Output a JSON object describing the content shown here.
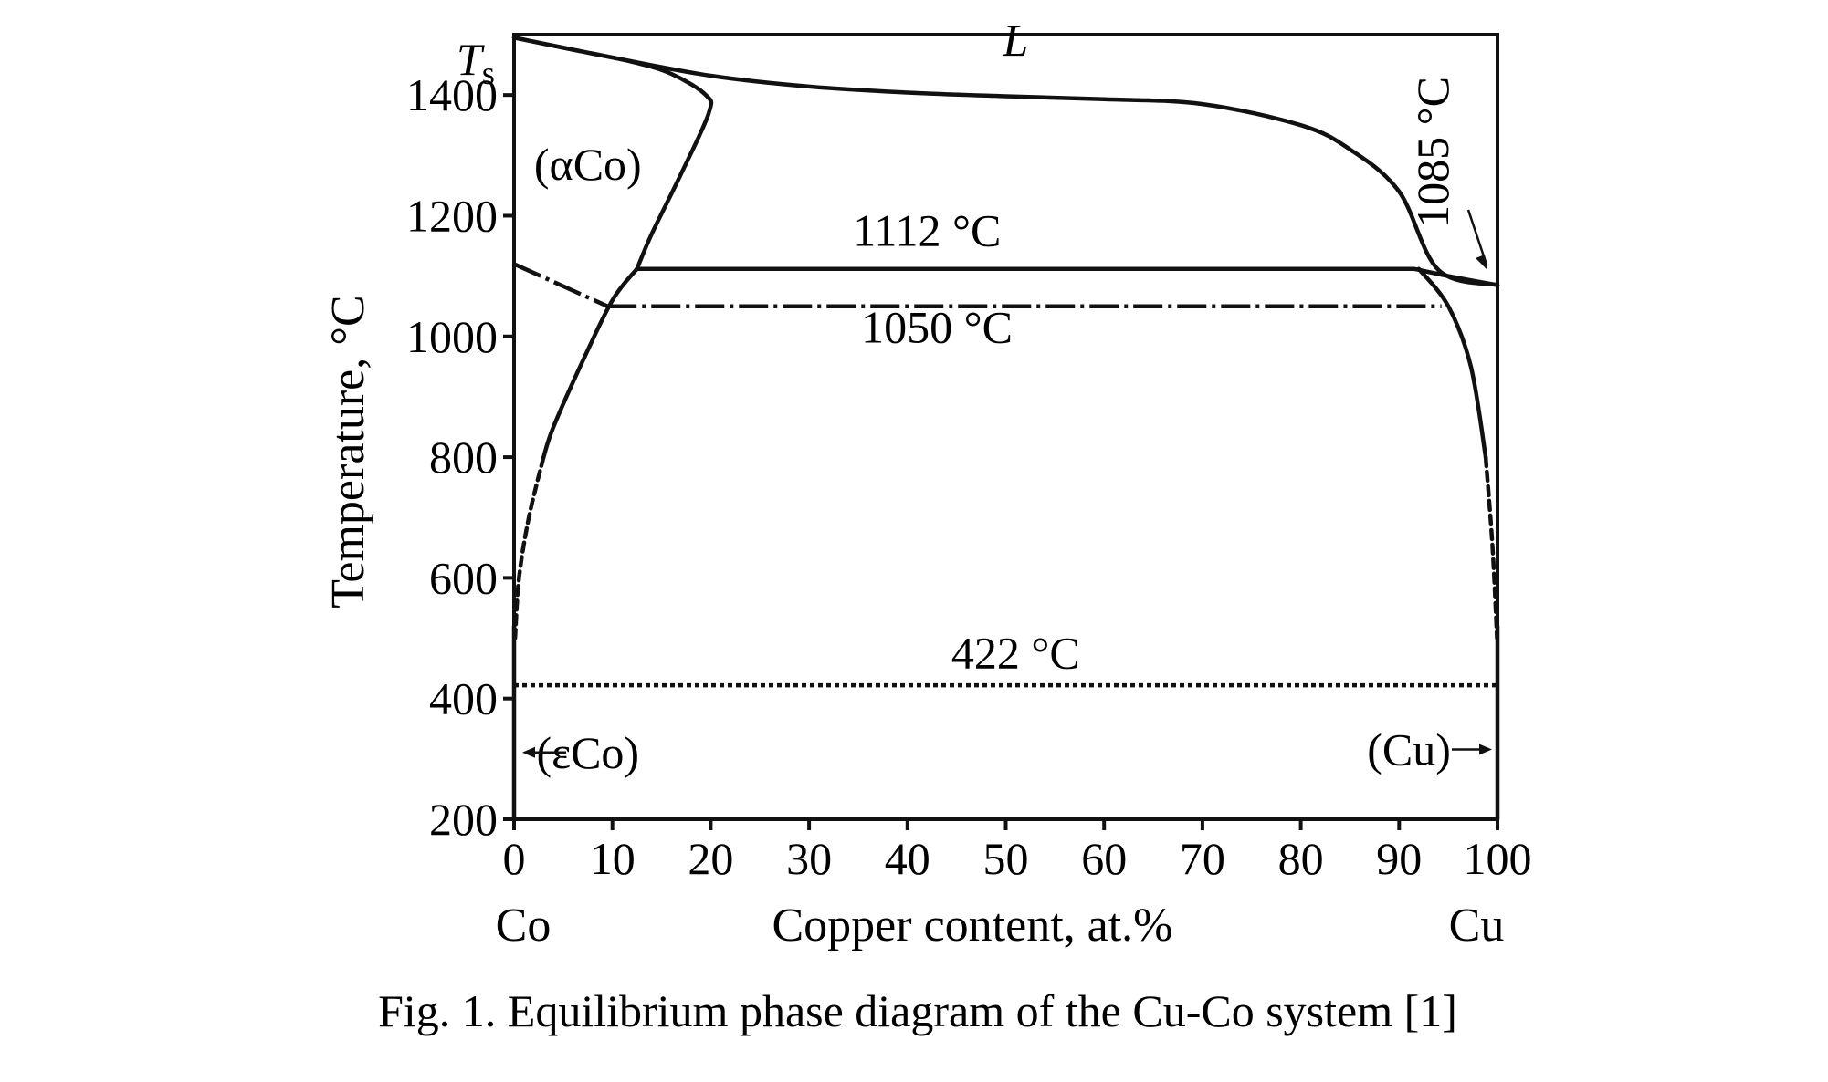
{
  "chart_data": {
    "type": "line",
    "xlabel": "Copper content, at.%",
    "ylabel": "Temperature, °C",
    "xlim": [
      0,
      100
    ],
    "ylim": [
      200,
      1500
    ],
    "x_ticks": [
      0,
      10,
      20,
      30,
      40,
      50,
      60,
      70,
      80,
      90,
      100
    ],
    "x_tick_labels": [
      "0",
      "10",
      "20",
      "30",
      "40",
      "50",
      "60",
      "70",
      "80",
      "90",
      "100"
    ],
    "y_ticks": [
      200,
      400,
      600,
      800,
      1000,
      1200,
      1400
    ],
    "y_tick_labels": [
      "200",
      "400",
      "600",
      "800",
      "1000",
      "1200",
      "1400"
    ],
    "x_end_labels": {
      "left": "Co",
      "right": "Cu"
    },
    "grid": false,
    "series": [
      {
        "style": "solid",
        "x": [
          0,
          10,
          20,
          30,
          40,
          50,
          60,
          70,
          80,
          85,
          90,
          94,
          100
        ],
        "y": [
          1495,
          1462,
          1432,
          1414,
          1404,
          1398,
          1393,
          1385,
          1350,
          1310,
          1240,
          1110,
          1085
        ]
      },
      {
        "style": "solid",
        "x": [
          0,
          6,
          12,
          16,
          19.5,
          19.8,
          17,
          14,
          12.5
        ],
        "y": [
          1495,
          1475,
          1455,
          1435,
          1400,
          1370,
          1270,
          1170,
          1112
        ]
      },
      {
        "style": "solid",
        "x": [
          12.5,
          30,
          60,
          91.5
        ],
        "y": [
          1112,
          1112,
          1112,
          1112
        ]
      },
      {
        "style": "solid",
        "x": [
          91.5,
          95,
          100
        ],
        "y": [
          1112,
          1100,
          1085
        ]
      },
      {
        "style": "solid",
        "x": [
          12.5,
          10,
          7,
          4,
          3
        ],
        "y": [
          1112,
          1060,
          960,
          850,
          800
        ]
      },
      {
        "style": "dashed",
        "x": [
          3,
          1.5,
          0.5,
          0.1
        ],
        "y": [
          800,
          700,
          600,
          500
        ]
      },
      {
        "style": "dash-dot",
        "x": [
          0,
          9.5
        ],
        "y": [
          1120,
          1050
        ]
      },
      {
        "style": "dash-dot",
        "x": [
          9.5,
          30,
          60,
          94.3
        ],
        "y": [
          1050,
          1050,
          1050,
          1050
        ]
      },
      {
        "style": "solid",
        "x": [
          92,
          95,
          97.3,
          98.8
        ],
        "y": [
          1112,
          1050,
          950,
          800
        ]
      },
      {
        "style": "dashed",
        "x": [
          98.8,
          99.5,
          99.95
        ],
        "y": [
          800,
          650,
          500
        ]
      },
      {
        "style": "dotted",
        "x": [
          0,
          100
        ],
        "y": [
          422,
          422
        ]
      },
      {
        "style": "solid",
        "x": [
          0,
          0
        ],
        "y": [
          200,
          520
        ]
      },
      {
        "style": "solid",
        "x": [
          100,
          100
        ],
        "y": [
          200,
          520
        ]
      }
    ],
    "annotations": [
      {
        "text": "L",
        "x": 51,
        "y": 1465
      },
      {
        "text": "(αCo)",
        "x": 7.5,
        "y": 1260
      },
      {
        "text": "1112 °C",
        "x": 42,
        "y": 1150
      },
      {
        "text": "1050 °C",
        "x": 43,
        "y": 990
      },
      {
        "text": "422 °C",
        "x": 51,
        "y": 450
      },
      {
        "text": "1085 °C",
        "x": 95,
        "y": 1305
      },
      {
        "text": "(εCo)",
        "x": 7.5,
        "y": 285
      },
      {
        "text": "(Cu)",
        "x": 91,
        "y": 290
      }
    ],
    "ts_label": {
      "main": "T",
      "sub": "s"
    }
  },
  "caption": "Fig. 1. Equilibrium phase diagram of the Cu-Co system [1]"
}
